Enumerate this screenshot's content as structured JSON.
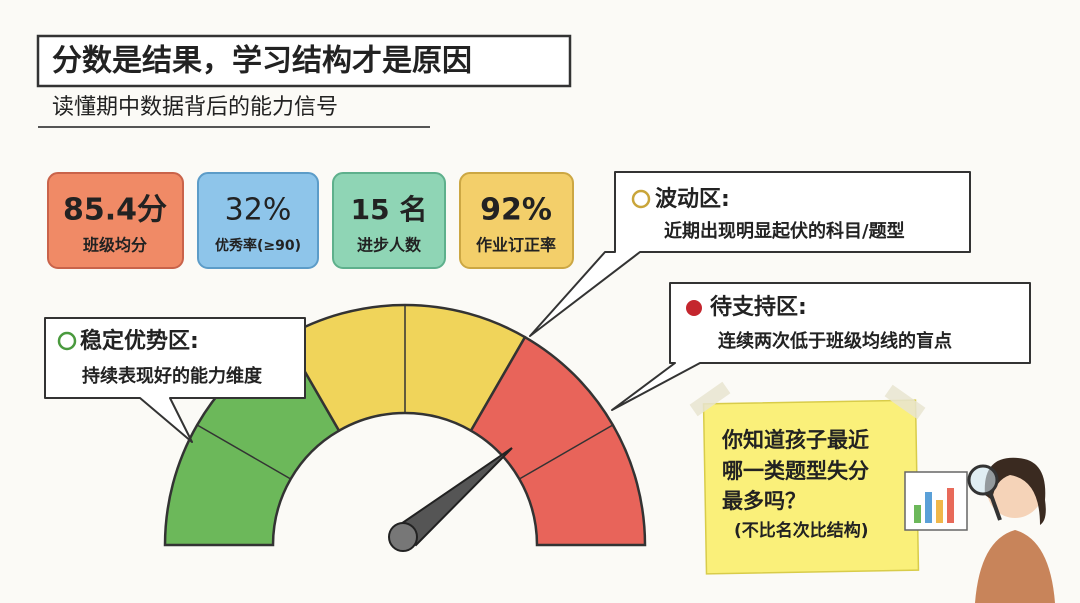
{
  "header": {
    "title": "分数是结果，学习结构才是原因",
    "subtitle": "读懂期中数据背后的能力信号"
  },
  "stats": [
    {
      "value": "85.4分",
      "label": "班级均分"
    },
    {
      "value": "32%",
      "label": "优秀率(≥90)"
    },
    {
      "value": "15 名",
      "label": "进步人数"
    },
    {
      "value": "92%",
      "label": "作业订正率"
    }
  ],
  "callouts": [
    {
      "title": "稳定优势区:",
      "text": "持续表现好的能力维度"
    },
    {
      "title": "波动区:",
      "text": "近期出现明显起伏的科目/题型"
    },
    {
      "title": "待支持区:",
      "text": "连续两次低于班级均线的盲点"
    }
  ],
  "note": {
    "lines": [
      "你知道孩子最近",
      "哪一类题型失分",
      "最多吗？",
      "(不比名次比结构)"
    ]
  }
}
